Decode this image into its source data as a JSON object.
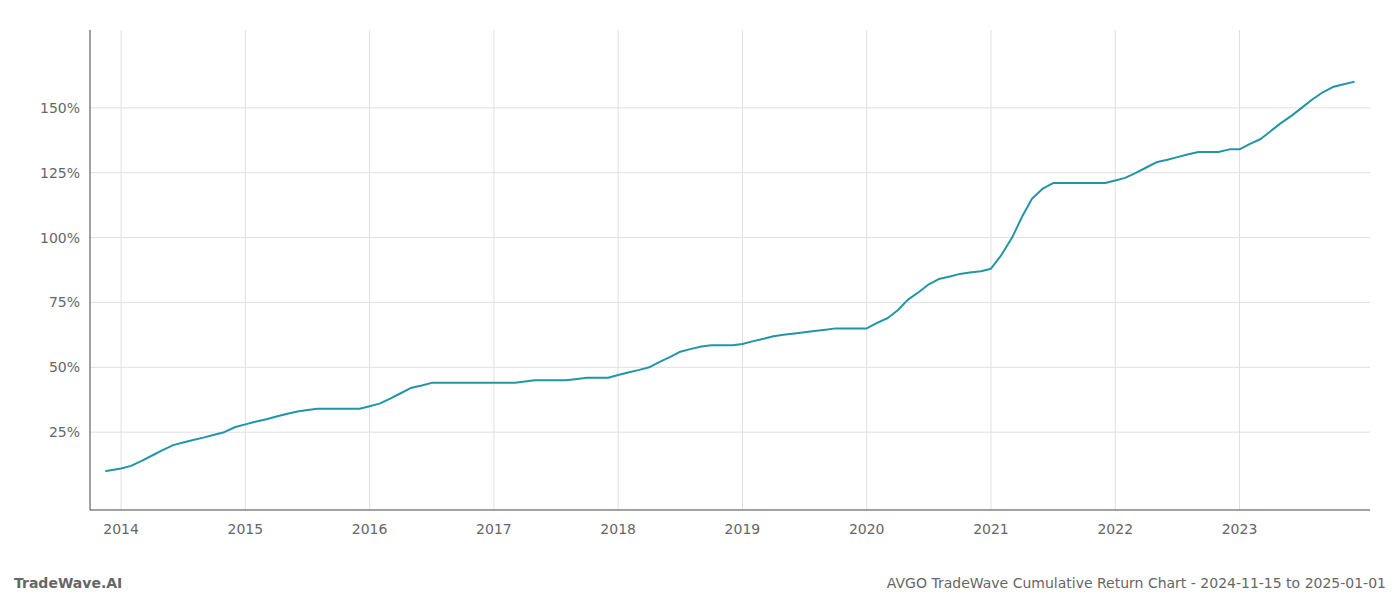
{
  "chart_data": {
    "type": "line",
    "title": "AVGO TradeWave Cumulative Return Chart - 2024-11-15 to 2025-01-01",
    "annotations": [
      "TradeWave.AI"
    ],
    "color": "#2196a6",
    "grid": true,
    "x": [
      2013.88,
      2014.0,
      2014.08,
      2014.17,
      2014.25,
      2014.33,
      2014.42,
      2014.5,
      2014.58,
      2014.67,
      2014.75,
      2014.83,
      2014.92,
      2015.0,
      2015.08,
      2015.17,
      2015.25,
      2015.33,
      2015.42,
      2015.5,
      2015.58,
      2015.67,
      2015.75,
      2015.83,
      2015.92,
      2016.0,
      2016.08,
      2016.17,
      2016.25,
      2016.33,
      2016.42,
      2016.5,
      2016.58,
      2016.67,
      2016.75,
      2016.83,
      2016.92,
      2017.0,
      2017.08,
      2017.17,
      2017.25,
      2017.33,
      2017.42,
      2017.5,
      2017.58,
      2017.67,
      2017.75,
      2017.83,
      2017.92,
      2018.0,
      2018.08,
      2018.17,
      2018.25,
      2018.33,
      2018.42,
      2018.5,
      2018.58,
      2018.67,
      2018.75,
      2018.83,
      2018.92,
      2019.0,
      2019.08,
      2019.17,
      2019.25,
      2019.33,
      2019.42,
      2019.5,
      2019.58,
      2019.67,
      2019.75,
      2019.83,
      2019.92,
      2020.0,
      2020.08,
      2020.17,
      2020.25,
      2020.33,
      2020.42,
      2020.5,
      2020.58,
      2020.67,
      2020.75,
      2020.83,
      2020.92,
      2021.0,
      2021.08,
      2021.17,
      2021.25,
      2021.33,
      2021.42,
      2021.5,
      2021.58,
      2021.67,
      2021.75,
      2021.83,
      2021.92,
      2022.0,
      2022.08,
      2022.17,
      2022.25,
      2022.33,
      2022.42,
      2022.5,
      2022.58,
      2022.67,
      2022.75,
      2022.83,
      2022.92,
      2023.0,
      2023.08,
      2023.17,
      2023.25,
      2023.33,
      2023.42,
      2023.5,
      2023.58,
      2023.67,
      2023.75,
      2023.83,
      2023.92
    ],
    "values": [
      10,
      11,
      12,
      14,
      16,
      18,
      20,
      21,
      22,
      23,
      24,
      25,
      27,
      28,
      29,
      30,
      31,
      32,
      33,
      33.5,
      34,
      34,
      34,
      34,
      34,
      35,
      36,
      38,
      40,
      42,
      43,
      44,
      44,
      44,
      44,
      44,
      44,
      44,
      44,
      44,
      44.5,
      45,
      45,
      45,
      45,
      45.5,
      46,
      46,
      46,
      47,
      48,
      49,
      50,
      52,
      54,
      56,
      57,
      58,
      58.5,
      58.5,
      58.5,
      59,
      60,
      61,
      62,
      62.5,
      63,
      63.5,
      64,
      64.5,
      65,
      65,
      65,
      65,
      67,
      69,
      72,
      76,
      79,
      82,
      84,
      85,
      86,
      86.5,
      87,
      88,
      93,
      100,
      108,
      115,
      119,
      121,
      121,
      121,
      121,
      121,
      121,
      122,
      123,
      125,
      127,
      129,
      130,
      131,
      132,
      133,
      133,
      133,
      134,
      134,
      136,
      138,
      141,
      144,
      147,
      150,
      153,
      156,
      158,
      159,
      160
    ],
    "xlim": [
      2013.75,
      2024.05
    ],
    "xticks": [
      2014,
      2015,
      2016,
      2017,
      2018,
      2019,
      2020,
      2021,
      2022,
      2023
    ],
    "ylim": [
      -5,
      180
    ],
    "yticks": [
      {
        "value": 25,
        "label": "25%"
      },
      {
        "value": 50,
        "label": "50%"
      },
      {
        "value": 75,
        "label": "75%"
      },
      {
        "value": 100,
        "label": "100%"
      },
      {
        "value": 125,
        "label": "125%"
      },
      {
        "value": 150,
        "label": "150%"
      }
    ]
  }
}
